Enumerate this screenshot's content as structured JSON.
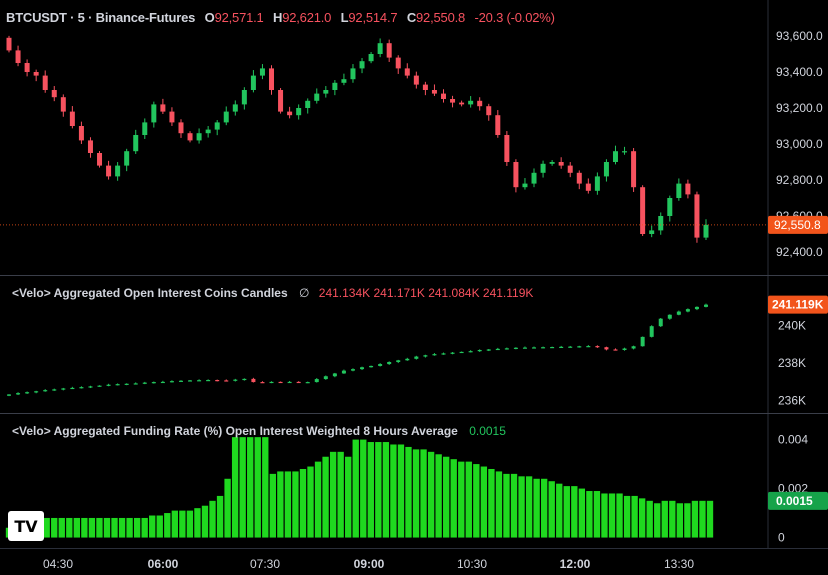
{
  "header": {
    "symbol": "BTCUSDT · 5 · Binance-Futures",
    "open_label": "O",
    "open": "92,571.1",
    "high_label": "H",
    "high": "92,621.0",
    "low_label": "L",
    "low": "92,514.7",
    "close_label": "C",
    "close": "92,550.8",
    "change": "-20.3 (-0.02%)"
  },
  "panels": {
    "oi": {
      "title": "<Velo> Aggregated Open Interest Coins Candles",
      "symbol": "∅",
      "values": "241.134K  241.171K  241.084K  241.119K",
      "last_badge": "241.119K"
    },
    "funding": {
      "title": "<Velo> Aggregated Funding Rate (%) Open Interest Weighted 8 Hours Average",
      "value": "0.0015",
      "last_badge": "0.0015"
    }
  },
  "logo_text": "TV",
  "colors": {
    "up": "#22c55e",
    "down": "#f7525f",
    "badge": "#f2541b",
    "funding": "#1fd91f",
    "background": "#000000"
  },
  "chart_data": [
    {
      "type": "candlestick",
      "title": "BTCUSDT · 5 · Binance-Futures",
      "ylim": [
        92300,
        93700
      ],
      "y_ticks": [
        "93,600.0",
        "93,400.0",
        "93,200.0",
        "93,000.0",
        "92,800.0",
        "92,600.0",
        "92,400.0"
      ],
      "y_tick_values": [
        93600,
        93400,
        93200,
        93000,
        92800,
        92600,
        92400
      ],
      "last_price": "92,550.8",
      "last_value": 92550.8,
      "close_path": [
        93520,
        93450,
        93400,
        93380,
        93300,
        93260,
        93180,
        93100,
        93020,
        92950,
        92880,
        92820,
        92880,
        92960,
        93050,
        93120,
        93220,
        93180,
        93120,
        93060,
        93020,
        93060,
        93080,
        93120,
        93180,
        93220,
        93300,
        93380,
        93420,
        93300,
        93180,
        93160,
        93200,
        93240,
        93280,
        93300,
        93340,
        93360,
        93420,
        93460,
        93500,
        93560,
        93480,
        93420,
        93380,
        93330,
        93300,
        93280,
        93250,
        93230,
        93220,
        93240,
        93210,
        93160,
        93050,
        92900,
        92760,
        92780,
        92840,
        92890,
        92900,
        92880,
        92840,
        92780,
        92740,
        92820,
        92900,
        92960,
        92960,
        92760,
        92500,
        92520,
        92600,
        92700,
        92780,
        92720,
        92480,
        92551
      ]
    },
    {
      "type": "candlestick",
      "title": "<Velo> Aggregated Open Interest Coins Candles",
      "ylim": [
        235500,
        241900
      ],
      "y_ticks": [
        "240K",
        "238K",
        "236K"
      ],
      "y_tick_values": [
        240000,
        238000,
        236000
      ],
      "last_value": 241119,
      "close_path": [
        236330,
        236400,
        236450,
        236500,
        236560,
        236600,
        236650,
        236680,
        236720,
        236760,
        236800,
        236850,
        236880,
        236900,
        236920,
        236960,
        236990,
        237000,
        237040,
        237060,
        237080,
        237090,
        237100,
        237080,
        237060,
        237120,
        237160,
        236990,
        236980,
        237000,
        236990,
        237000,
        236990,
        236990,
        237150,
        237300,
        237450,
        237600,
        237680,
        237780,
        237850,
        237950,
        238060,
        238150,
        238230,
        238350,
        238420,
        238480,
        238520,
        238560,
        238600,
        238640,
        238700,
        238730,
        238760,
        238790,
        238820,
        238830,
        238840,
        238850,
        238860,
        238870,
        238880,
        238900,
        238910,
        238850,
        238730,
        238700,
        238780,
        238900,
        239400,
        239970,
        240370,
        240580,
        240750,
        240880,
        241000,
        241119
      ]
    },
    {
      "type": "bar",
      "title": "<Velo> Aggregated Funding Rate (%) Open Interest Weighted 8 Hours Average",
      "ylim": [
        -0.0001,
        0.0048
      ],
      "y_ticks": [
        "0.004",
        "0.002",
        "0"
      ],
      "y_tick_values": [
        0.004,
        0.002,
        0
      ],
      "last_value": 0.0015,
      "values": [
        0.0004,
        0.0006,
        0.0007,
        0.0007,
        0.0007,
        0.0008,
        0.0008,
        0.0008,
        0.0008,
        0.0008,
        0.0008,
        0.0008,
        0.0008,
        0.0008,
        0.0008,
        0.0008,
        0.0008,
        0.0008,
        0.0008,
        0.0009,
        0.0009,
        0.001,
        0.0011,
        0.0011,
        0.0011,
        0.0012,
        0.0013,
        0.0015,
        0.0017,
        0.0024,
        0.0041,
        0.0041,
        0.0041,
        0.0041,
        0.0041,
        0.0026,
        0.0027,
        0.0027,
        0.0027,
        0.0028,
        0.0029,
        0.0031,
        0.0033,
        0.0035,
        0.0035,
        0.0033,
        0.004,
        0.004,
        0.0039,
        0.0039,
        0.0039,
        0.0038,
        0.0038,
        0.0037,
        0.0036,
        0.0036,
        0.0035,
        0.0034,
        0.0033,
        0.0032,
        0.0031,
        0.0031,
        0.003,
        0.0029,
        0.0028,
        0.0027,
        0.0026,
        0.0026,
        0.0025,
        0.0025,
        0.0024,
        0.0024,
        0.0023,
        0.0022,
        0.0021,
        0.0021,
        0.002,
        0.0019,
        0.0019,
        0.0018,
        0.0018,
        0.0018,
        0.0017,
        0.0017,
        0.0016,
        0.0015,
        0.0014,
        0.0015,
        0.0015,
        0.0014,
        0.0014,
        0.0015,
        0.0015,
        0.0015
      ]
    }
  ],
  "x_axis": {
    "ticks": [
      "04:30",
      "06:00",
      "07:30",
      "09:00",
      "10:30",
      "12:00",
      "13:30"
    ],
    "bold": [
      false,
      true,
      false,
      true,
      false,
      true,
      false
    ]
  }
}
